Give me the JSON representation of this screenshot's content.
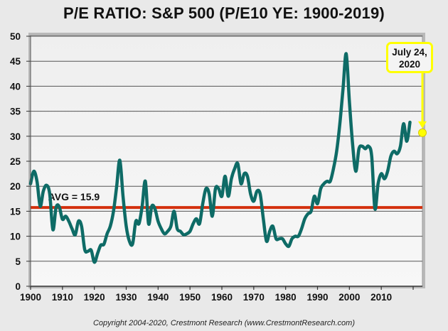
{
  "chart_data": {
    "type": "line",
    "title": "P/E RATIO: S&P 500 (P/E10 YE: 1900-2019)",
    "xlabel": "",
    "ylabel": "",
    "xlim": [
      1900,
      2020
    ],
    "ylim": [
      0,
      50
    ],
    "grid": true,
    "x_ticks": [
      1900,
      1910,
      1920,
      1930,
      1940,
      1950,
      1960,
      1970,
      1980,
      1990,
      2000,
      2010,
      2020
    ],
    "x_tick_labels": [
      "1900",
      "1910",
      "1920",
      "1930",
      "1940",
      "1950",
      "1960",
      "1970",
      "1980",
      "1990",
      "2000",
      "2010",
      ""
    ],
    "y_ticks": [
      0,
      5,
      10,
      15,
      20,
      25,
      30,
      35,
      40,
      45,
      50
    ],
    "y_tick_labels": [
      "0",
      "5",
      "10",
      "15",
      "20",
      "25",
      "30",
      "35",
      "40",
      "45",
      "50"
    ],
    "series": [
      {
        "name": "P/E10",
        "color": "#0e6b66",
        "x": [
          1900,
          1901,
          1902,
          1903,
          1904,
          1905,
          1906,
          1907,
          1908,
          1909,
          1910,
          1911,
          1912,
          1913,
          1914,
          1915,
          1916,
          1917,
          1918,
          1919,
          1920,
          1921,
          1922,
          1923,
          1924,
          1925,
          1926,
          1927,
          1928,
          1929,
          1930,
          1931,
          1932,
          1933,
          1934,
          1935,
          1936,
          1937,
          1938,
          1939,
          1940,
          1941,
          1942,
          1943,
          1944,
          1945,
          1946,
          1947,
          1948,
          1949,
          1950,
          1951,
          1952,
          1953,
          1954,
          1955,
          1956,
          1957,
          1958,
          1959,
          1960,
          1961,
          1962,
          1963,
          1964,
          1965,
          1966,
          1967,
          1968,
          1969,
          1970,
          1971,
          1972,
          1973,
          1974,
          1975,
          1976,
          1977,
          1978,
          1979,
          1980,
          1981,
          1982,
          1983,
          1984,
          1985,
          1986,
          1987,
          1988,
          1989,
          1990,
          1991,
          1992,
          1993,
          1994,
          1995,
          1996,
          1997,
          1998,
          1999,
          2000,
          2001,
          2002,
          2003,
          2004,
          2005,
          2006,
          2007,
          2008,
          2009,
          2010,
          2011,
          2012,
          2013,
          2014,
          2015,
          2016,
          2017,
          2018,
          2019
        ],
        "values": [
          20.5,
          23.0,
          21.0,
          16.0,
          19.0,
          20.2,
          18.5,
          11.3,
          15.8,
          15.9,
          13.4,
          14.0,
          13.0,
          11.5,
          10.3,
          13.0,
          12.0,
          7.3,
          7.0,
          7.2,
          4.8,
          6.5,
          8.2,
          8.4,
          10.5,
          12.0,
          15.0,
          20.0,
          25.2,
          18.0,
          12.0,
          9.0,
          8.5,
          13.0,
          12.5,
          16.0,
          21.0,
          12.5,
          16.0,
          15.5,
          13.0,
          11.5,
          10.5,
          11.0,
          12.0,
          15.0,
          11.5,
          11.0,
          10.3,
          10.5,
          11.0,
          12.5,
          13.5,
          12.5,
          16.5,
          19.5,
          18.5,
          14.0,
          19.5,
          19.5,
          18.0,
          22.0,
          18.0,
          21.5,
          23.5,
          24.5,
          20.5,
          22.5,
          22.0,
          18.5,
          17.0,
          19.0,
          18.5,
          13.5,
          9.0,
          11.0,
          12.0,
          9.5,
          9.5,
          9.5,
          8.5,
          8.0,
          9.5,
          10.0,
          10.0,
          11.5,
          13.5,
          14.5,
          15.0,
          18.0,
          16.5,
          19.5,
          20.5,
          21.0,
          21.0,
          23.5,
          27.0,
          32.5,
          39.5,
          46.5,
          37.0,
          28.5,
          23.0,
          27.5,
          28.0,
          27.5,
          28.0,
          26.0,
          15.5,
          20.5,
          22.5,
          21.5,
          23.0,
          26.0,
          27.0,
          26.5,
          28.0,
          32.5,
          29.0,
          32.8
        ]
      },
      {
        "name": "AVG",
        "color": "#d32f0c",
        "value": 15.9
      }
    ],
    "annotations": [
      {
        "text": "AVG = 15.9",
        "x": 1905.5,
        "y": 17.2
      },
      {
        "text": "July 24, 2020",
        "line1": "July 24,",
        "line2": "2020",
        "x": 2020,
        "y": 30.7,
        "color": "#ffff00"
      }
    ],
    "current_point": {
      "label": "July 24, 2020",
      "x": 2020,
      "y": 30.7
    }
  },
  "footer": {
    "copyright": "Copyright 2004-2020, Crestmont Research (www.CrestmontResearch.com)"
  }
}
